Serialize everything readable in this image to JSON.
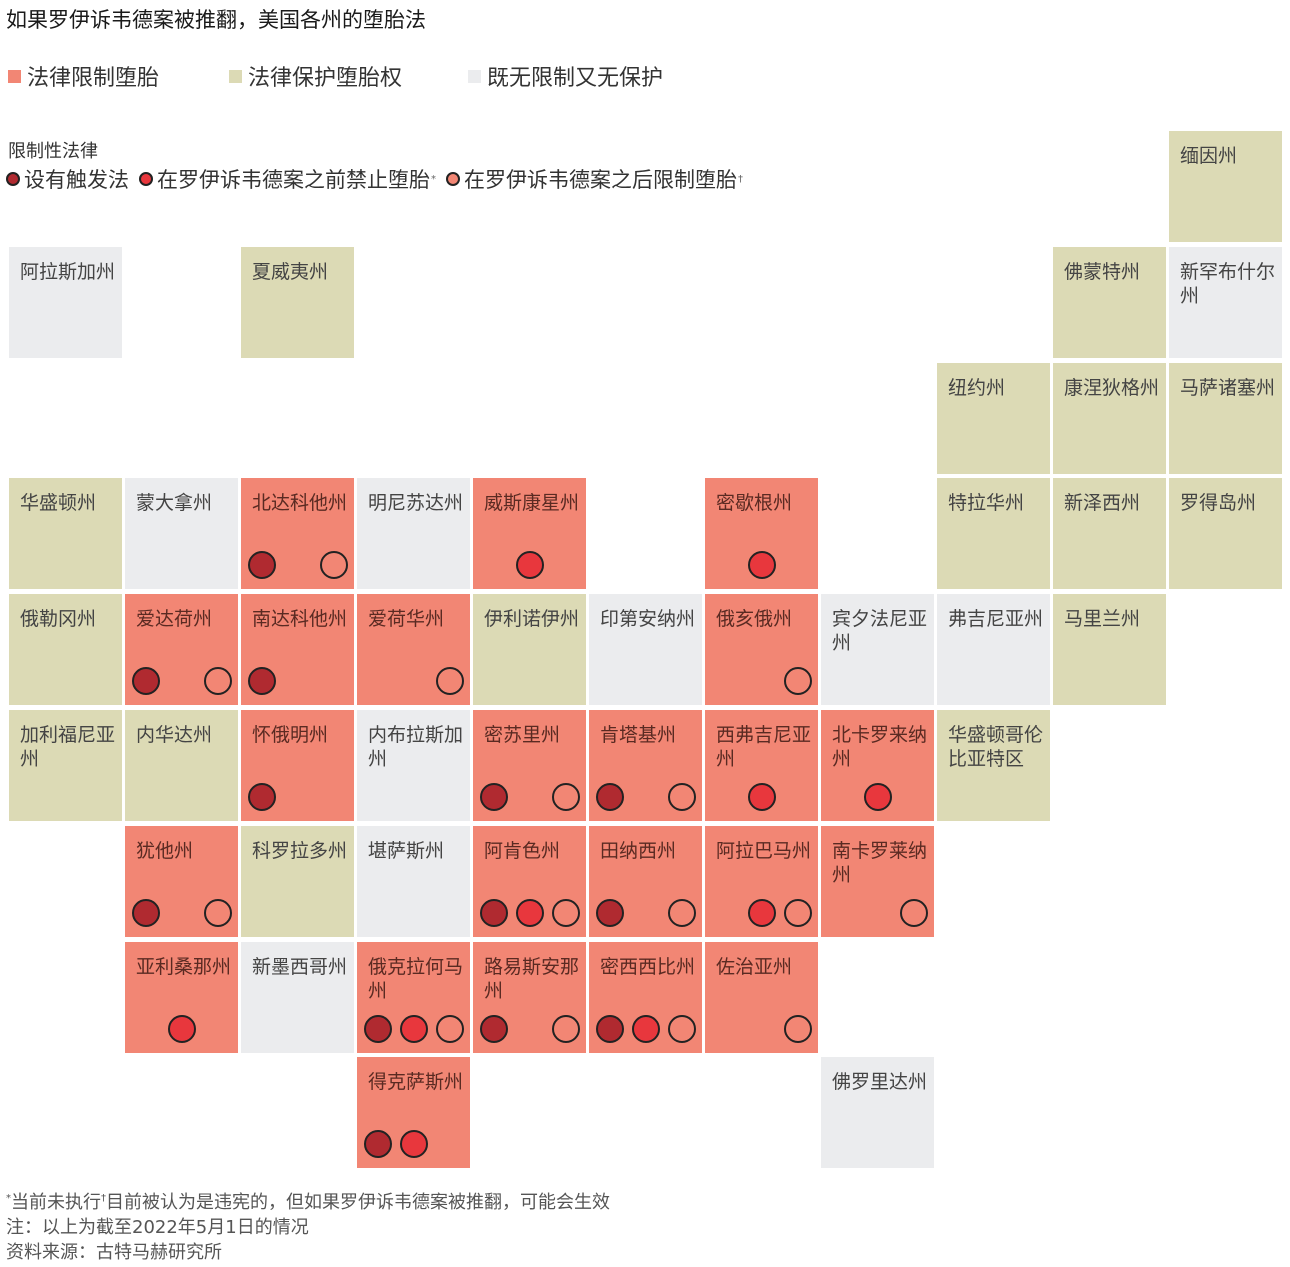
{
  "title": "如果罗伊诉韦德案被推翻，美国各州的堕胎法",
  "colors": {
    "restrict": "#f28674",
    "protect": "#dcdab5",
    "neither": "#ebecee",
    "trigger": "#b02a30",
    "pre_roe": "#e8373d",
    "post_roe_fill": "#f28674"
  },
  "legend": {
    "restrict": "法律限制堕胎",
    "protect": "法律保护堕胎权",
    "neither": "既无限制又无保护"
  },
  "law_legend": {
    "title": "限制性法律",
    "trigger": "设有触发法",
    "pre_roe": "在罗伊诉韦德案之前禁止堕胎",
    "pre_roe_mark": "*",
    "post_roe": "在罗伊诉韦德案之后限制堕胎",
    "post_roe_mark": "†"
  },
  "states": [
    {
      "name": "缅因州",
      "cat": "protect",
      "row": 0,
      "col": 10,
      "dots": []
    },
    {
      "name": "阿拉斯加州",
      "cat": "neither",
      "row": 1,
      "col": 0,
      "dots": []
    },
    {
      "name": "夏威夷州",
      "cat": "protect",
      "row": 1,
      "col": 2,
      "dots": []
    },
    {
      "name": "佛蒙特州",
      "cat": "protect",
      "row": 1,
      "col": 9,
      "dots": []
    },
    {
      "name": "新罕布什尔州",
      "cat": "neither",
      "row": 1,
      "col": 10,
      "dots": []
    },
    {
      "name": "纽约州",
      "cat": "protect",
      "row": 2,
      "col": 8,
      "dots": []
    },
    {
      "name": "康涅狄格州",
      "cat": "protect",
      "row": 2,
      "col": 9,
      "dots": []
    },
    {
      "name": "马萨诸塞州",
      "cat": "protect",
      "row": 2,
      "col": 10,
      "dots": []
    },
    {
      "name": "华盛顿州",
      "cat": "protect",
      "row": 3,
      "col": 0,
      "dots": []
    },
    {
      "name": "蒙大拿州",
      "cat": "neither",
      "row": 3,
      "col": 1,
      "dots": []
    },
    {
      "name": "北达科他州",
      "cat": "restrict",
      "row": 3,
      "col": 2,
      "dots": [
        "trigger",
        "post"
      ]
    },
    {
      "name": "明尼苏达州",
      "cat": "neither",
      "row": 3,
      "col": 3,
      "dots": []
    },
    {
      "name": "威斯康星州",
      "cat": "restrict",
      "row": 3,
      "col": 4,
      "dots": [
        "pre"
      ]
    },
    {
      "name": "密歇根州",
      "cat": "restrict",
      "row": 3,
      "col": 6,
      "dots": [
        "pre"
      ]
    },
    {
      "name": "特拉华州",
      "cat": "protect",
      "row": 3,
      "col": 8,
      "dots": []
    },
    {
      "name": "新泽西州",
      "cat": "protect",
      "row": 3,
      "col": 9,
      "dots": []
    },
    {
      "name": "罗得岛州",
      "cat": "protect",
      "row": 3,
      "col": 10,
      "dots": []
    },
    {
      "name": "俄勒冈州",
      "cat": "protect",
      "row": 4,
      "col": 0,
      "dots": []
    },
    {
      "name": "爱达荷州",
      "cat": "restrict",
      "row": 4,
      "col": 1,
      "dots": [
        "trigger",
        "post"
      ]
    },
    {
      "name": "南达科他州",
      "cat": "restrict",
      "row": 4,
      "col": 2,
      "dots": [
        "trigger"
      ]
    },
    {
      "name": "爱荷华州",
      "cat": "restrict",
      "row": 4,
      "col": 3,
      "dots": [
        "post"
      ]
    },
    {
      "name": "伊利诺伊州",
      "cat": "protect",
      "row": 4,
      "col": 4,
      "dots": []
    },
    {
      "name": "印第安纳州",
      "cat": "neither",
      "row": 4,
      "col": 5,
      "dots": []
    },
    {
      "name": "俄亥俄州",
      "cat": "restrict",
      "row": 4,
      "col": 6,
      "dots": [
        "post"
      ]
    },
    {
      "name": "宾夕法尼亚州",
      "cat": "neither",
      "row": 4,
      "col": 7,
      "dots": []
    },
    {
      "name": "弗吉尼亚州",
      "cat": "neither",
      "row": 4,
      "col": 8,
      "dots": []
    },
    {
      "name": "马里兰州",
      "cat": "protect",
      "row": 4,
      "col": 9,
      "dots": []
    },
    {
      "name": "加利福尼亚州",
      "cat": "protect",
      "row": 5,
      "col": 0,
      "dots": []
    },
    {
      "name": "内华达州",
      "cat": "protect",
      "row": 5,
      "col": 1,
      "dots": []
    },
    {
      "name": "怀俄明州",
      "cat": "restrict",
      "row": 5,
      "col": 2,
      "dots": [
        "trigger"
      ]
    },
    {
      "name": "内布拉斯加州",
      "cat": "neither",
      "row": 5,
      "col": 3,
      "dots": []
    },
    {
      "name": "密苏里州",
      "cat": "restrict",
      "row": 5,
      "col": 4,
      "dots": [
        "trigger",
        "post"
      ]
    },
    {
      "name": "肯塔基州",
      "cat": "restrict",
      "row": 5,
      "col": 5,
      "dots": [
        "trigger",
        "post"
      ]
    },
    {
      "name": "西弗吉尼亚州",
      "cat": "restrict",
      "row": 5,
      "col": 6,
      "dots": [
        "pre"
      ]
    },
    {
      "name": "北卡罗来纳州",
      "cat": "restrict",
      "row": 5,
      "col": 7,
      "dots": [
        "pre"
      ]
    },
    {
      "name": "华盛顿哥伦比亚特区",
      "cat": "protect",
      "row": 5,
      "col": 8,
      "dots": []
    },
    {
      "name": "犹他州",
      "cat": "restrict",
      "row": 6,
      "col": 1,
      "dots": [
        "trigger",
        "post"
      ]
    },
    {
      "name": "科罗拉多州",
      "cat": "protect",
      "row": 6,
      "col": 2,
      "dots": []
    },
    {
      "name": "堪萨斯州",
      "cat": "neither",
      "row": 6,
      "col": 3,
      "dots": []
    },
    {
      "name": "阿肯色州",
      "cat": "restrict",
      "row": 6,
      "col": 4,
      "dots": [
        "trigger",
        "pre",
        "post"
      ]
    },
    {
      "name": "田纳西州",
      "cat": "restrict",
      "row": 6,
      "col": 5,
      "dots": [
        "trigger",
        "post"
      ]
    },
    {
      "name": "阿拉巴马州",
      "cat": "restrict",
      "row": 6,
      "col": 6,
      "dots": [
        "pre",
        "post"
      ]
    },
    {
      "name": "南卡罗莱纳州",
      "cat": "restrict",
      "row": 6,
      "col": 7,
      "dots": [
        "post"
      ]
    },
    {
      "name": "亚利桑那州",
      "cat": "restrict",
      "row": 7,
      "col": 1,
      "dots": [
        "pre"
      ]
    },
    {
      "name": "新墨西哥州",
      "cat": "neither",
      "row": 7,
      "col": 2,
      "dots": []
    },
    {
      "name": "俄克拉何马州",
      "cat": "restrict",
      "row": 7,
      "col": 3,
      "dots": [
        "trigger",
        "pre",
        "post"
      ]
    },
    {
      "name": "路易斯安那州",
      "cat": "restrict",
      "row": 7,
      "col": 4,
      "dots": [
        "trigger",
        "post"
      ]
    },
    {
      "name": "密西西比州",
      "cat": "restrict",
      "row": 7,
      "col": 5,
      "dots": [
        "trigger",
        "pre",
        "post"
      ]
    },
    {
      "name": "佐治亚州",
      "cat": "restrict",
      "row": 7,
      "col": 6,
      "dots": [
        "post"
      ]
    },
    {
      "name": "得克萨斯州",
      "cat": "restrict",
      "row": 8,
      "col": 3,
      "dots": [
        "trigger",
        "pre"
      ]
    },
    {
      "name": "佛罗里达州",
      "cat": "neither",
      "row": 8,
      "col": 7,
      "dots": []
    }
  ],
  "footer": {
    "note1_mark_a": "*",
    "note1_a": "当前未执行",
    "note1_mark_b": "†",
    "note1_b": "目前被认为是违宪的，但如果罗伊诉韦德案被推翻，可能会生效",
    "note2": "注：以上为截至2022年5月1日的情况",
    "source": "资料来源：古特马赫研究所"
  }
}
